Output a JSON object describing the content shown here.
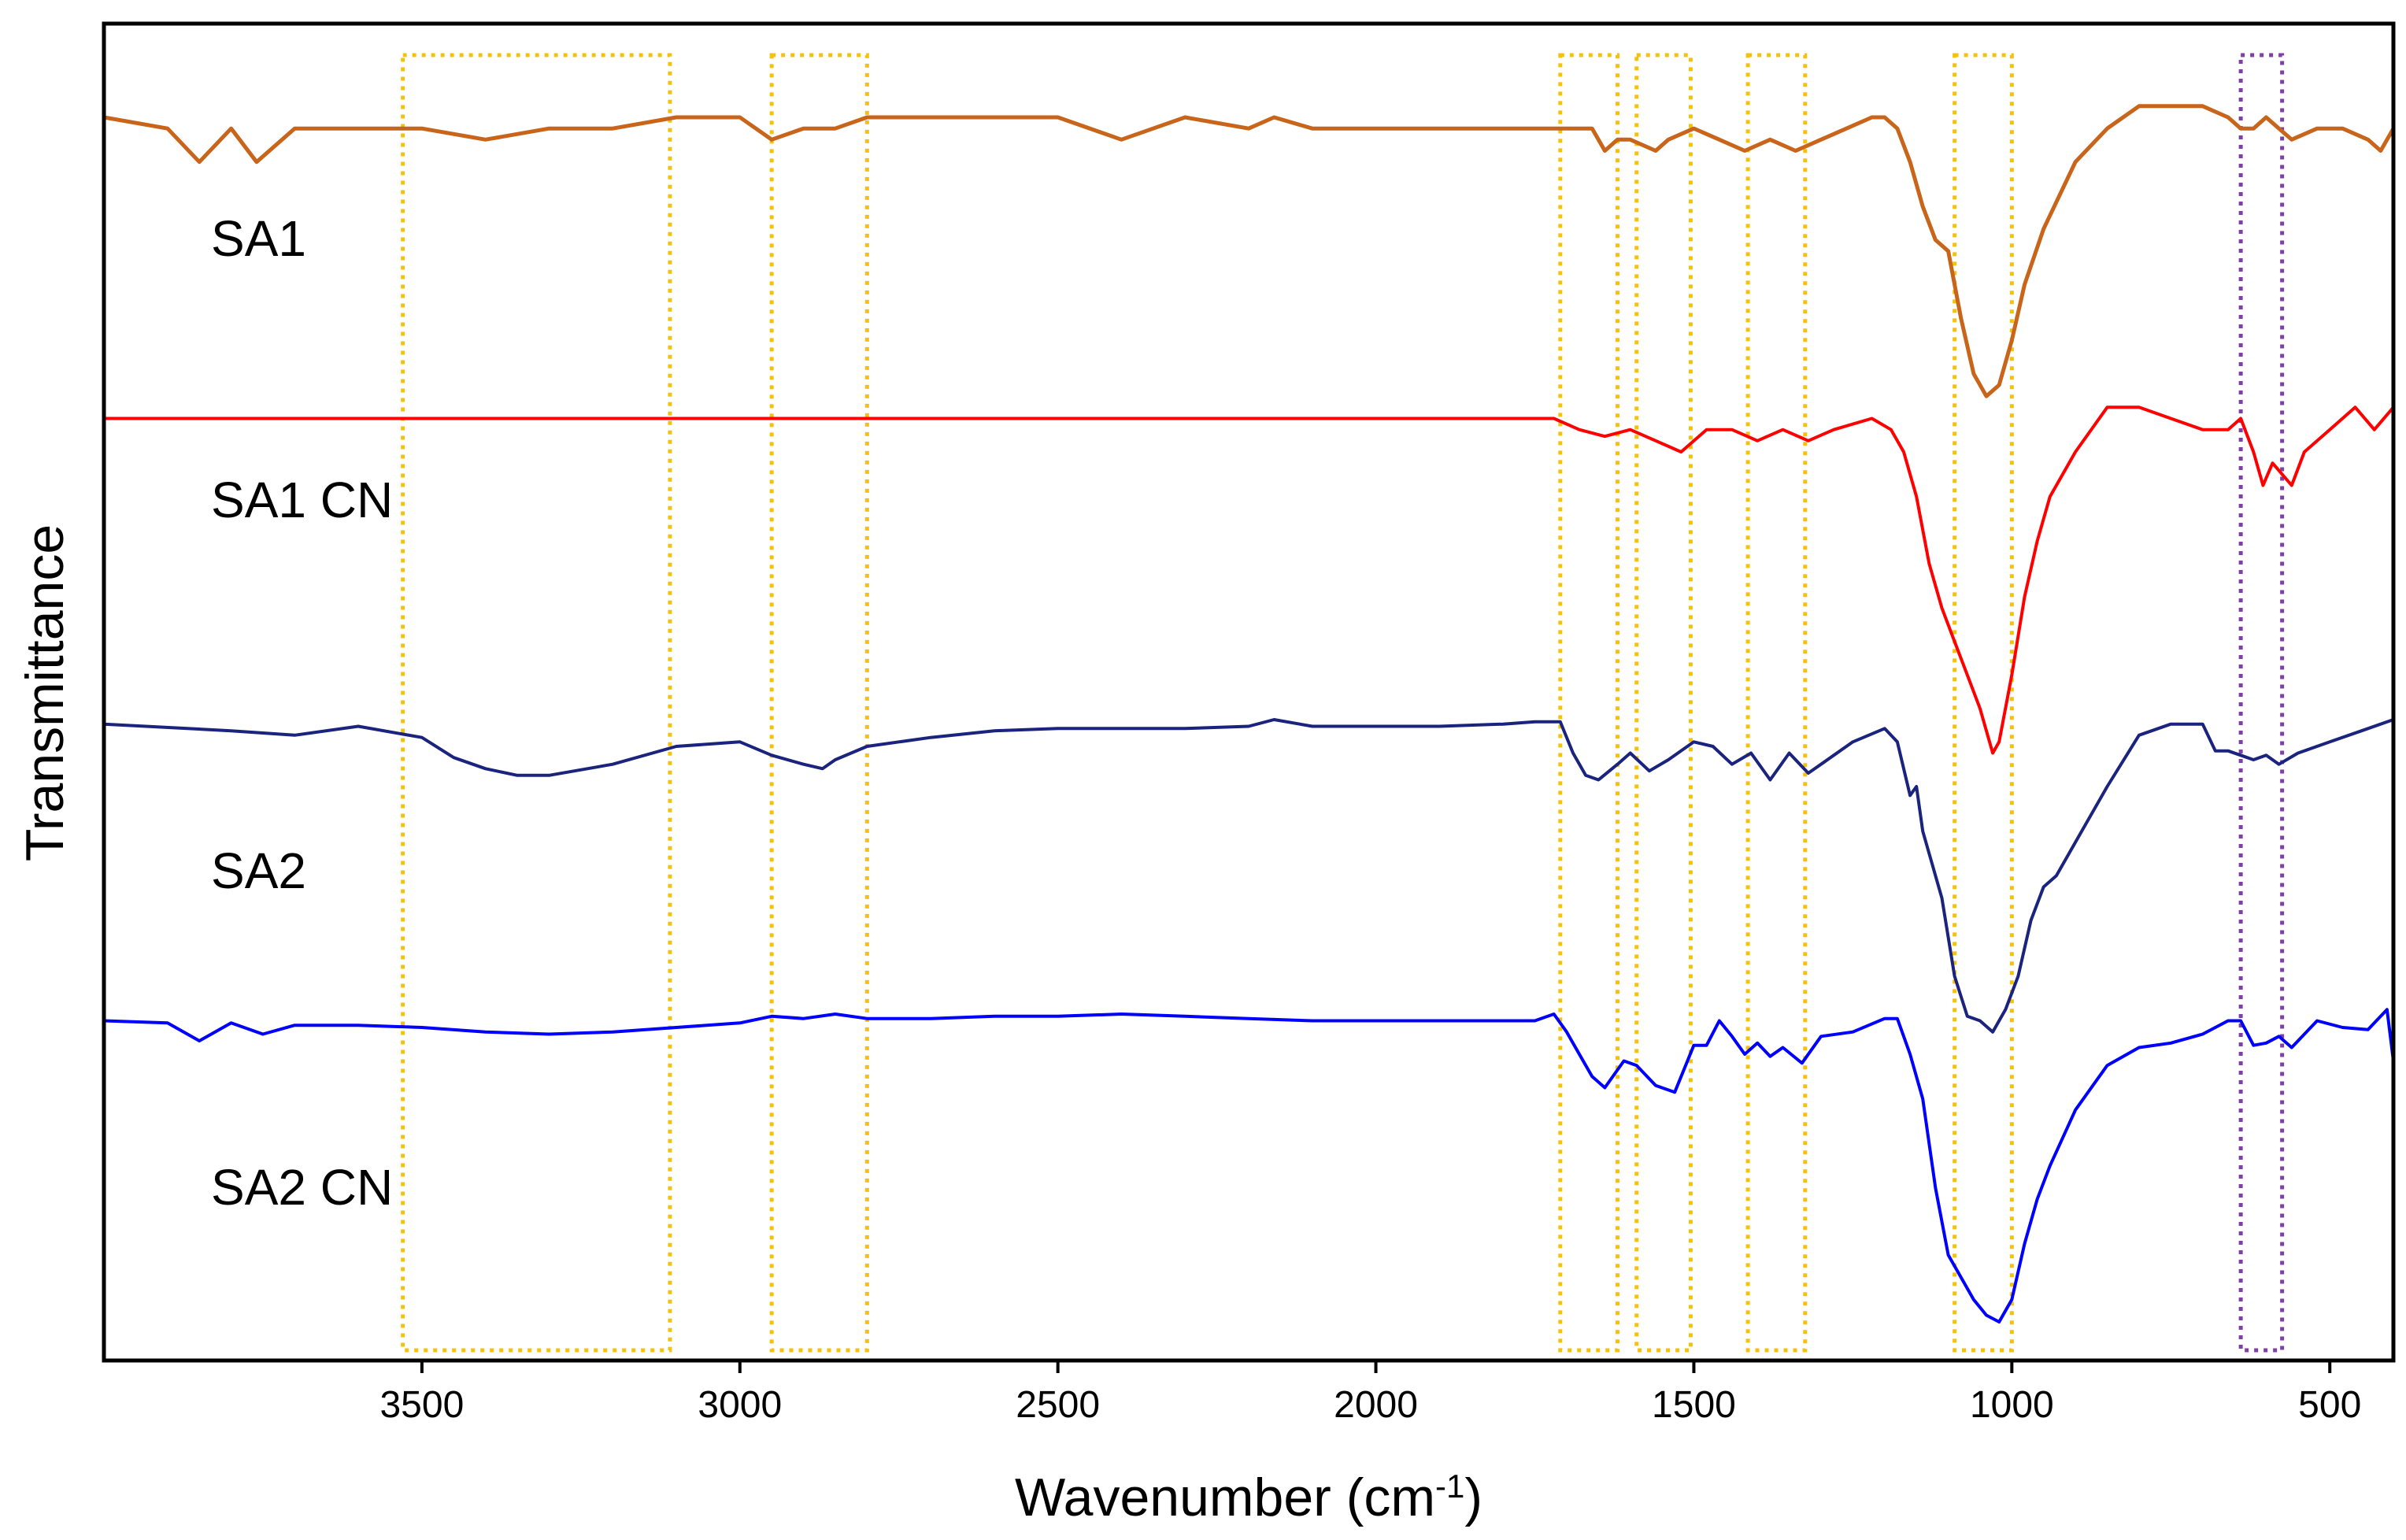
{
  "chart_data": {
    "type": "line",
    "title": "",
    "xlabel": "Wavenumber (cm",
    "xlabel_sup": "-1",
    "xlabel_close": ")",
    "ylabel": "Transmittance",
    "xlim": [
      4000,
      400
    ],
    "x_reversed": true,
    "y_ticks_shown": false,
    "x_ticks": [
      3500,
      3000,
      2500,
      2000,
      1500,
      1000,
      500
    ],
    "x_tick_labels": [
      "3500",
      "3000",
      "2500",
      "2000",
      "1500",
      "1000",
      "500"
    ],
    "highlight_bands": [
      {
        "from": 3530,
        "to": 3110,
        "color": "#F4C20D"
      },
      {
        "from": 2950,
        "to": 2800,
        "color": "#F4C20D"
      },
      {
        "from": 1710,
        "to": 1620,
        "color": "#F4C20D"
      },
      {
        "from": 1590,
        "to": 1505,
        "color": "#F4C20D"
      },
      {
        "from": 1415,
        "to": 1325,
        "color": "#F4C20D"
      },
      {
        "from": 1090,
        "to": 1000,
        "color": "#F4C20D"
      },
      {
        "from": 640,
        "to": 575,
        "color": "#7E3FA6"
      }
    ],
    "series": [
      {
        "name": "SA1",
        "color": "#C8651B",
        "x": [
          4000,
          3900,
          3850,
          3800,
          3760,
          3700,
          3600,
          3500,
          3400,
          3300,
          3200,
          3100,
          3000,
          2950,
          2900,
          2850,
          2800,
          2700,
          2600,
          2500,
          2400,
          2300,
          2200,
          2160,
          2100,
          2000,
          1900,
          1800,
          1750,
          1700,
          1660,
          1640,
          1620,
          1600,
          1560,
          1540,
          1500,
          1460,
          1420,
          1380,
          1340,
          1300,
          1260,
          1220,
          1200,
          1180,
          1160,
          1140,
          1120,
          1100,
          1080,
          1060,
          1040,
          1020,
          1000,
          980,
          950,
          900,
          850,
          800,
          750,
          700,
          660,
          640,
          620,
          600,
          580,
          560,
          520,
          480,
          440,
          420,
          400
        ],
        "y": [
          97,
          96.5,
          95,
          96.5,
          95,
          96.5,
          96.5,
          96.5,
          96,
          96.5,
          96.5,
          97,
          97,
          96,
          96.5,
          96.5,
          97,
          97,
          97,
          97,
          96,
          97,
          96.5,
          97,
          96.5,
          96.5,
          96.5,
          96.5,
          96.5,
          96.5,
          96.5,
          95.5,
          96,
          96,
          95.5,
          96,
          96.5,
          96,
          95.5,
          96,
          95.5,
          96,
          96.5,
          97,
          97,
          96.5,
          95,
          93,
          91.5,
          91,
          88,
          85.5,
          84.5,
          85,
          87,
          89.5,
          92,
          95,
          96.5,
          97.5,
          97.5,
          97.5,
          97,
          96.5,
          96.5,
          97,
          96.5,
          96,
          96.5,
          96.5,
          96,
          95.5,
          96.5
        ]
      },
      {
        "name": "SA1 CN",
        "color": "#FF0000",
        "x": [
          4000,
          3500,
          3000,
          2500,
          2200,
          2000,
          1800,
          1720,
          1680,
          1640,
          1600,
          1560,
          1520,
          1480,
          1440,
          1400,
          1360,
          1320,
          1280,
          1220,
          1190,
          1170,
          1150,
          1130,
          1110,
          1090,
          1070,
          1050,
          1040,
          1030,
          1020,
          1000,
          980,
          960,
          940,
          900,
          850,
          800,
          750,
          700,
          660,
          640,
          620,
          605,
          590,
          575,
          560,
          540,
          500,
          460,
          430,
          400
        ],
        "y": [
          83.5,
          83.5,
          83.5,
          83.5,
          83.5,
          83.5,
          83.5,
          83.5,
          83,
          82.7,
          83,
          82.5,
          82,
          83,
          83,
          82.5,
          83,
          82.5,
          83,
          83.5,
          83,
          82,
          80,
          77,
          75,
          73.5,
          72,
          70.5,
          69.5,
          68.5,
          69,
          72,
          75.5,
          78,
          80,
          82,
          84,
          84,
          83.5,
          83,
          83,
          83.5,
          82,
          80.5,
          81.5,
          81,
          80.5,
          82,
          83,
          84,
          83,
          84
        ]
      },
      {
        "name": "SA2",
        "color": "#1A237E",
        "x": [
          4000,
          3800,
          3700,
          3600,
          3500,
          3450,
          3400,
          3350,
          3300,
          3200,
          3100,
          3000,
          2950,
          2900,
          2870,
          2850,
          2800,
          2700,
          2600,
          2500,
          2400,
          2300,
          2200,
          2160,
          2100,
          2000,
          1900,
          1800,
          1750,
          1710,
          1690,
          1670,
          1650,
          1620,
          1600,
          1570,
          1540,
          1500,
          1470,
          1440,
          1410,
          1380,
          1350,
          1320,
          1300,
          1250,
          1200,
          1180,
          1160,
          1150,
          1140,
          1130,
          1110,
          1090,
          1070,
          1050,
          1030,
          1010,
          990,
          970,
          950,
          930,
          900,
          850,
          800,
          750,
          700,
          680,
          660,
          640,
          620,
          600,
          580,
          550,
          500,
          450,
          400
        ],
        "y": [
          69.8,
          69.5,
          69.3,
          69.7,
          69.2,
          68.3,
          67.8,
          67.5,
          67.5,
          68,
          68.8,
          69,
          68.4,
          68,
          67.8,
          68.2,
          68.8,
          69.2,
          69.5,
          69.6,
          69.6,
          69.6,
          69.7,
          70,
          69.7,
          69.7,
          69.7,
          69.8,
          69.9,
          69.9,
          68.5,
          67.5,
          67.3,
          68,
          68.5,
          67.7,
          68.2,
          69,
          68.8,
          68,
          68.5,
          67.3,
          68.5,
          67.6,
          68,
          69,
          69.6,
          69,
          66.6,
          67,
          65,
          64,
          62,
          58.5,
          56.7,
          56.5,
          56,
          57,
          58.5,
          61,
          62.5,
          63,
          64.5,
          67,
          69.3,
          69.8,
          69.8,
          68.6,
          68.6,
          68.4,
          68.2,
          68.4,
          68,
          68.5,
          69,
          69.5,
          70
        ]
      },
      {
        "name": "SA2 CN",
        "color": "#0000FF",
        "x": [
          4000,
          3900,
          3850,
          3800,
          3750,
          3700,
          3600,
          3500,
          3400,
          3300,
          3200,
          3100,
          3000,
          2950,
          2900,
          2850,
          2800,
          2700,
          2600,
          2500,
          2400,
          2300,
          2200,
          2100,
          2000,
          1900,
          1800,
          1750,
          1720,
          1700,
          1680,
          1660,
          1640,
          1610,
          1590,
          1560,
          1530,
          1500,
          1480,
          1460,
          1440,
          1420,
          1400,
          1380,
          1360,
          1330,
          1300,
          1250,
          1200,
          1180,
          1160,
          1140,
          1120,
          1100,
          1080,
          1060,
          1040,
          1020,
          1000,
          980,
          960,
          940,
          900,
          850,
          800,
          750,
          700,
          660,
          640,
          620,
          600,
          580,
          560,
          520,
          480,
          440,
          410,
          400
        ],
        "y": [
          56.5,
          56.4,
          55.6,
          56.4,
          55.9,
          56.3,
          56.3,
          56.2,
          56,
          55.9,
          56,
          56.2,
          56.4,
          56.7,
          56.6,
          56.8,
          56.6,
          56.6,
          56.7,
          56.7,
          56.8,
          56.7,
          56.6,
          56.5,
          56.5,
          56.5,
          56.5,
          56.5,
          56.8,
          56,
          55,
          54,
          53.5,
          54.7,
          54.5,
          53.6,
          53.3,
          55.4,
          55.4,
          56.5,
          55.8,
          55,
          55.5,
          54.9,
          55.3,
          54.6,
          55.8,
          56,
          56.6,
          56.6,
          55,
          53,
          49,
          46,
          45,
          44,
          43.3,
          43,
          44,
          46.5,
          48.5,
          50,
          52.5,
          54.5,
          55.3,
          55.5,
          55.9,
          56.5,
          56.5,
          55.4,
          55.5,
          55.8,
          55.3,
          56.5,
          56.2,
          56.1,
          57,
          54.7
        ]
      }
    ]
  }
}
